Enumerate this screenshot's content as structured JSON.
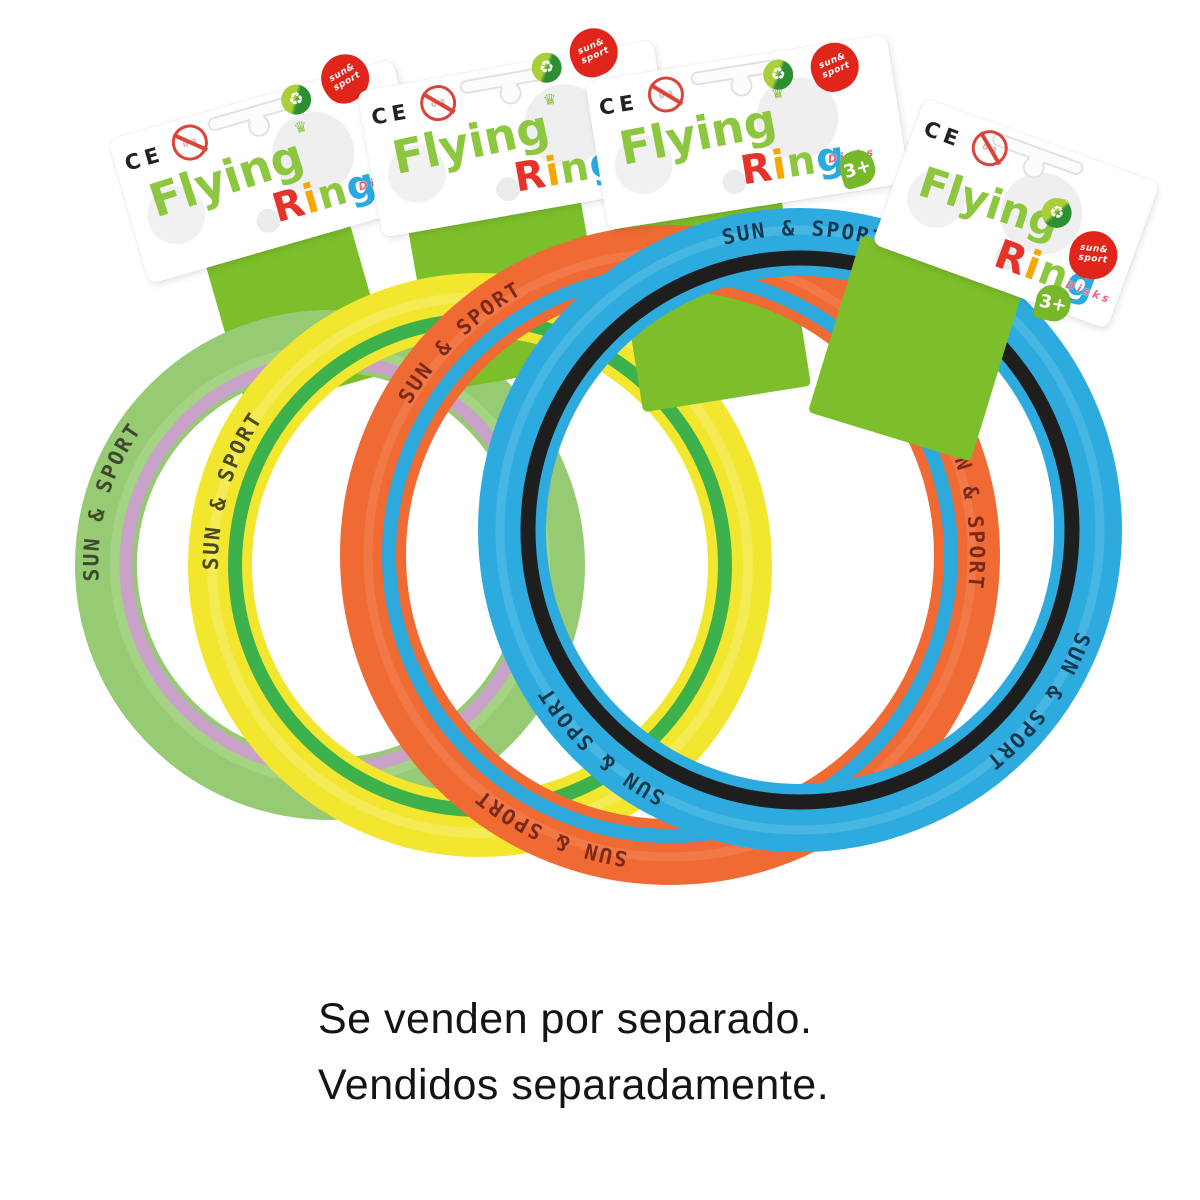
{
  "caption": {
    "line1": "Se venden por separado.",
    "line2": "Vendidos separadamente."
  },
  "brand": {
    "flying": "Flying",
    "ring_word": "Ring",
    "ring_letter_colors": [
      "#E63329",
      "#F7A600",
      "#8DC63F",
      "#29ABE2"
    ],
    "ring_subtext": "Disks",
    "ce_mark": "CE",
    "age_badge": "3+",
    "logo_badge_line1": "sun&",
    "logo_badge_line2": "sport",
    "flying_color": "#8DC63F",
    "badge_red": "#E0251B",
    "age_green": "#76B82A",
    "backing_green": "#7CBF2A"
  },
  "icons": {
    "recycle": "♻",
    "crown": "♛",
    "prohibition": "0-3"
  },
  "rings": [
    {
      "name": "green-ring",
      "label": "SUN & SPORT",
      "color": "#96CA73",
      "stripe": "#C8A2C8",
      "light": "#B2DB92",
      "text_color": "#3E4A2E"
    },
    {
      "name": "yellow-ring",
      "label": "SUN & SPORT",
      "color": "#F2E62E",
      "stripe": "#3DB14C",
      "light": "#F8F188",
      "text_color": "#4A4A1A"
    },
    {
      "name": "orange-ring",
      "label": "SUN & SPORT",
      "color": "#F06A33",
      "stripe": "#2EA9DC",
      "light": "#F59267",
      "text_color": "#7A2A1A"
    },
    {
      "name": "blue-ring",
      "label": "SUN & SPORT",
      "color": "#2EABDE",
      "stripe": "#1E1E1E",
      "light": "#6FC9EC",
      "text_color": "#14384F"
    }
  ]
}
